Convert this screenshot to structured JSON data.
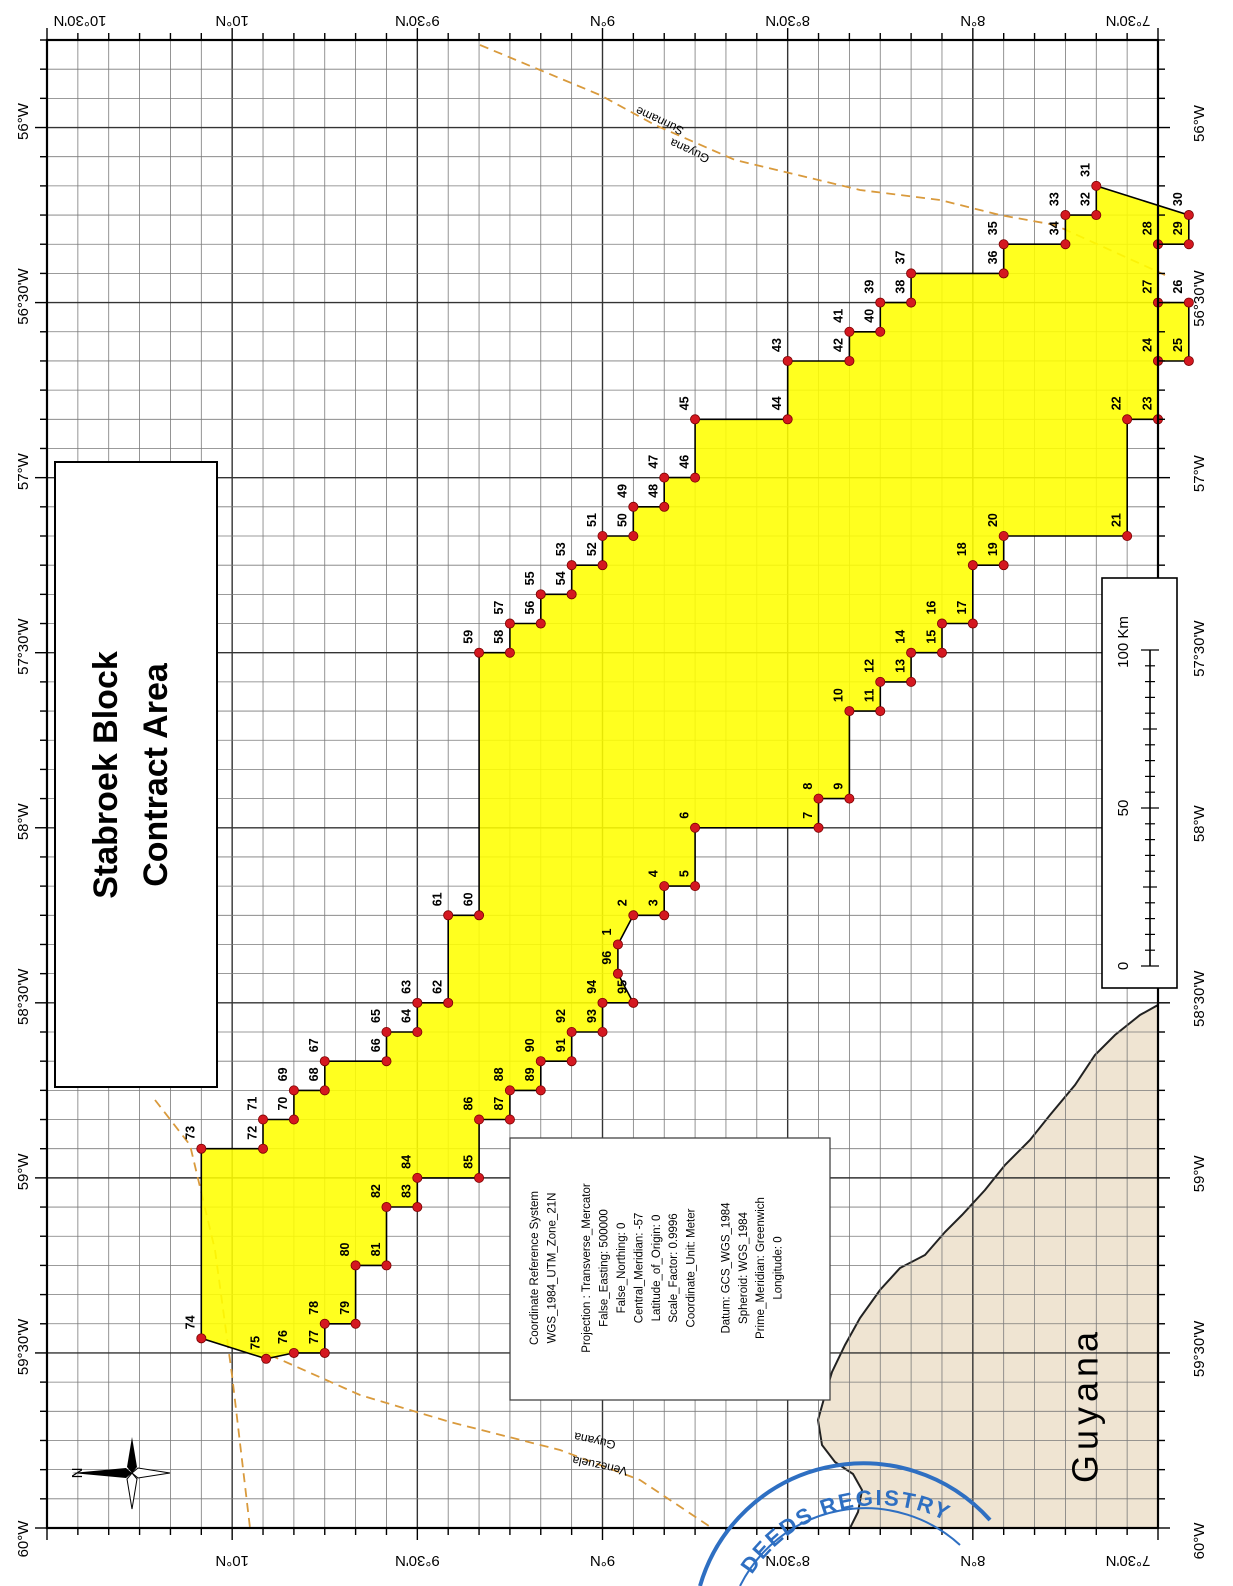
{
  "map": {
    "title_lines": [
      "Stabroek Block",
      "Contract Area"
    ],
    "country_label": "Guyana",
    "border_labels": {
      "ne_side_a": "Guyana",
      "ne_side_b": "Suriname",
      "sw_side_a": "Guyana",
      "sw_side_b": "Venezuela"
    },
    "north_arrow_label": "N",
    "colors": {
      "block_fill": "#ffff00",
      "vertex_marker": "#d41820",
      "grid": "#7a7a7a",
      "land_fill": "#efe4d2",
      "border_line": "#d99a3c",
      "stamp": "#2e6fc2"
    },
    "crs_info": {
      "lines": [
        "Coordinate Reference System",
        "WGS_1984_UTM_Zone_21N",
        "",
        "Projection : Transverse_Mercator",
        "False_Easting: 500000",
        "False_Northing: 0",
        "Central_Meridian: -57",
        "Latitude_of_Origin: 0",
        "Scale_Factor: 0.9996",
        "Coordinate_Unit: Meter",
        "",
        "Datum: GCS_WGS_1984",
        "Spheroid: WGS_1984",
        "Prime_Meridian: Greenwich",
        "Longitude: 0"
      ]
    },
    "scale_bar": {
      "labels": [
        "0",
        "50",
        "100 Km"
      ],
      "max_km": 100
    },
    "latitude_labels_top": [
      "10°30'N",
      "10°N",
      "9°30'N",
      "9°N",
      "8°30'N",
      "8°N",
      "7°30'N"
    ],
    "latitude_labels_bottom": [
      "10°N",
      "9°30'N",
      "9°N",
      "8°30'N",
      "8°N",
      "7°30'N"
    ],
    "longitude_labels": [
      "56°W",
      "56°30'W",
      "57°W",
      "57°30'W",
      "58°W",
      "58°30'W",
      "59°W",
      "59°30'W",
      "60°W"
    ],
    "stamp_text": "DEEDS REGISTRY",
    "vertices": [
      {
        "id": "1",
        "lat": 8.9583,
        "lon": -58.3333
      },
      {
        "id": "2",
        "lat": 8.9167,
        "lon": -58.25
      },
      {
        "id": "3",
        "lat": 8.8333,
        "lon": -58.25
      },
      {
        "id": "4",
        "lat": 8.8333,
        "lon": -58.1667
      },
      {
        "id": "5",
        "lat": 8.75,
        "lon": -58.1667
      },
      {
        "id": "6",
        "lat": 8.75,
        "lon": -58.0
      },
      {
        "id": "7",
        "lat": 8.4167,
        "lon": -58.0
      },
      {
        "id": "8",
        "lat": 8.4167,
        "lon": -57.9167
      },
      {
        "id": "9",
        "lat": 8.3333,
        "lon": -57.9167
      },
      {
        "id": "10",
        "lat": 8.3333,
        "lon": -57.6667
      },
      {
        "id": "11",
        "lat": 8.25,
        "lon": -57.6667
      },
      {
        "id": "12",
        "lat": 8.25,
        "lon": -57.5833
      },
      {
        "id": "13",
        "lat": 8.1667,
        "lon": -57.5833
      },
      {
        "id": "14",
        "lat": 8.1667,
        "lon": -57.5
      },
      {
        "id": "15",
        "lat": 8.0833,
        "lon": -57.5
      },
      {
        "id": "16",
        "lat": 8.0833,
        "lon": -57.4167
      },
      {
        "id": "17",
        "lat": 8.0,
        "lon": -57.4167
      },
      {
        "id": "18",
        "lat": 8.0,
        "lon": -57.25
      },
      {
        "id": "19",
        "lat": 7.9167,
        "lon": -57.25
      },
      {
        "id": "20",
        "lat": 7.9167,
        "lon": -57.1667
      },
      {
        "id": "21",
        "lat": 7.5833,
        "lon": -57.1667
      },
      {
        "id": "22",
        "lat": 7.5833,
        "lon": -56.8333
      },
      {
        "id": "23",
        "lat": 7.5,
        "lon": -56.8333
      },
      {
        "id": "24",
        "lat": 7.5,
        "lon": -56.6667
      },
      {
        "id": "25",
        "lat": 7.4167,
        "lon": -56.6667
      },
      {
        "id": "26",
        "lat": 7.4167,
        "lon": -56.5
      },
      {
        "id": "27",
        "lat": 7.5,
        "lon": -56.5
      },
      {
        "id": "28",
        "lat": 7.5,
        "lon": -56.3333
      },
      {
        "id": "29",
        "lat": 7.4167,
        "lon": -56.3333
      },
      {
        "id": "30",
        "lat": 7.4167,
        "lon": -56.25
      },
      {
        "id": "31",
        "lat": 7.6667,
        "lon": -56.1667
      },
      {
        "id": "32",
        "lat": 7.6667,
        "lon": -56.25
      },
      {
        "id": "33",
        "lat": 7.75,
        "lon": -56.25
      },
      {
        "id": "34",
        "lat": 7.75,
        "lon": -56.3333
      },
      {
        "id": "35",
        "lat": 7.9167,
        "lon": -56.3333
      },
      {
        "id": "36",
        "lat": 7.9167,
        "lon": -56.4167
      },
      {
        "id": "37",
        "lat": 8.1667,
        "lon": -56.4167
      },
      {
        "id": "38",
        "lat": 8.1667,
        "lon": -56.5
      },
      {
        "id": "39",
        "lat": 8.25,
        "lon": -56.5
      },
      {
        "id": "40",
        "lat": 8.25,
        "lon": -56.5833
      },
      {
        "id": "41",
        "lat": 8.3333,
        "lon": -56.5833
      },
      {
        "id": "42",
        "lat": 8.3333,
        "lon": -56.6667
      },
      {
        "id": "43",
        "lat": 8.5,
        "lon": -56.6667
      },
      {
        "id": "44",
        "lat": 8.5,
        "lon": -56.8333
      },
      {
        "id": "45",
        "lat": 8.75,
        "lon": -56.8333
      },
      {
        "id": "46",
        "lat": 8.75,
        "lon": -57.0
      },
      {
        "id": "47",
        "lat": 8.8333,
        "lon": -57.0
      },
      {
        "id": "48",
        "lat": 8.8333,
        "lon": -57.0833
      },
      {
        "id": "49",
        "lat": 8.9167,
        "lon": -57.0833
      },
      {
        "id": "50",
        "lat": 8.9167,
        "lon": -57.1667
      },
      {
        "id": "51",
        "lat": 9.0,
        "lon": -57.1667
      },
      {
        "id": "52",
        "lat": 9.0,
        "lon": -57.25
      },
      {
        "id": "53",
        "lat": 9.0833,
        "lon": -57.25
      },
      {
        "id": "54",
        "lat": 9.0833,
        "lon": -57.3333
      },
      {
        "id": "55",
        "lat": 9.1667,
        "lon": -57.3333
      },
      {
        "id": "56",
        "lat": 9.1667,
        "lon": -57.4167
      },
      {
        "id": "57",
        "lat": 9.25,
        "lon": -57.4167
      },
      {
        "id": "58",
        "lat": 9.25,
        "lon": -57.5
      },
      {
        "id": "59",
        "lat": 9.3333,
        "lon": -57.5
      },
      {
        "id": "60",
        "lat": 9.3333,
        "lon": -58.25
      },
      {
        "id": "61",
        "lat": 9.4167,
        "lon": -58.25
      },
      {
        "id": "62",
        "lat": 9.4167,
        "lon": -58.5
      },
      {
        "id": "63",
        "lat": 9.5,
        "lon": -58.5
      },
      {
        "id": "64",
        "lat": 9.5,
        "lon": -58.5833
      },
      {
        "id": "65",
        "lat": 9.5833,
        "lon": -58.5833
      },
      {
        "id": "66",
        "lat": 9.5833,
        "lon": -58.6667
      },
      {
        "id": "67",
        "lat": 9.75,
        "lon": -58.6667
      },
      {
        "id": "68",
        "lat": 9.75,
        "lon": -58.75
      },
      {
        "id": "69",
        "lat": 9.8333,
        "lon": -58.75
      },
      {
        "id": "70",
        "lat": 9.8333,
        "lon": -58.8333
      },
      {
        "id": "71",
        "lat": 9.9167,
        "lon": -58.8333
      },
      {
        "id": "72",
        "lat": 9.9167,
        "lon": -58.9167
      },
      {
        "id": "73",
        "lat": 10.0833,
        "lon": -58.9167
      },
      {
        "id": "74",
        "lat": 10.0833,
        "lon": -59.4583
      },
      {
        "id": "75",
        "lat": 9.9083,
        "lon": -59.5167
      },
      {
        "id": "76",
        "lat": 9.8333,
        "lon": -59.5
      },
      {
        "id": "77",
        "lat": 9.75,
        "lon": -59.5
      },
      {
        "id": "78",
        "lat": 9.75,
        "lon": -59.4167
      },
      {
        "id": "79",
        "lat": 9.6667,
        "lon": -59.4167
      },
      {
        "id": "80",
        "lat": 9.6667,
        "lon": -59.25
      },
      {
        "id": "81",
        "lat": 9.5833,
        "lon": -59.25
      },
      {
        "id": "82",
        "lat": 9.5833,
        "lon": -59.0833
      },
      {
        "id": "83",
        "lat": 9.5,
        "lon": -59.0833
      },
      {
        "id": "84",
        "lat": 9.5,
        "lon": -59.0
      },
      {
        "id": "85",
        "lat": 9.3333,
        "lon": -59.0
      },
      {
        "id": "86",
        "lat": 9.3333,
        "lon": -58.8333
      },
      {
        "id": "87",
        "lat": 9.25,
        "lon": -58.8333
      },
      {
        "id": "88",
        "lat": 9.25,
        "lon": -58.75
      },
      {
        "id": "89",
        "lat": 9.1667,
        "lon": -58.75
      },
      {
        "id": "90",
        "lat": 9.1667,
        "lon": -58.6667
      },
      {
        "id": "91",
        "lat": 9.0833,
        "lon": -58.6667
      },
      {
        "id": "92",
        "lat": 9.0833,
        "lon": -58.5833
      },
      {
        "id": "93",
        "lat": 9.0,
        "lon": -58.5833
      },
      {
        "id": "94",
        "lat": 9.0,
        "lon": -58.5
      },
      {
        "id": "95",
        "lat": 8.9167,
        "lon": -58.5
      },
      {
        "id": "96",
        "lat": 8.9583,
        "lon": -58.4167
      }
    ]
  }
}
